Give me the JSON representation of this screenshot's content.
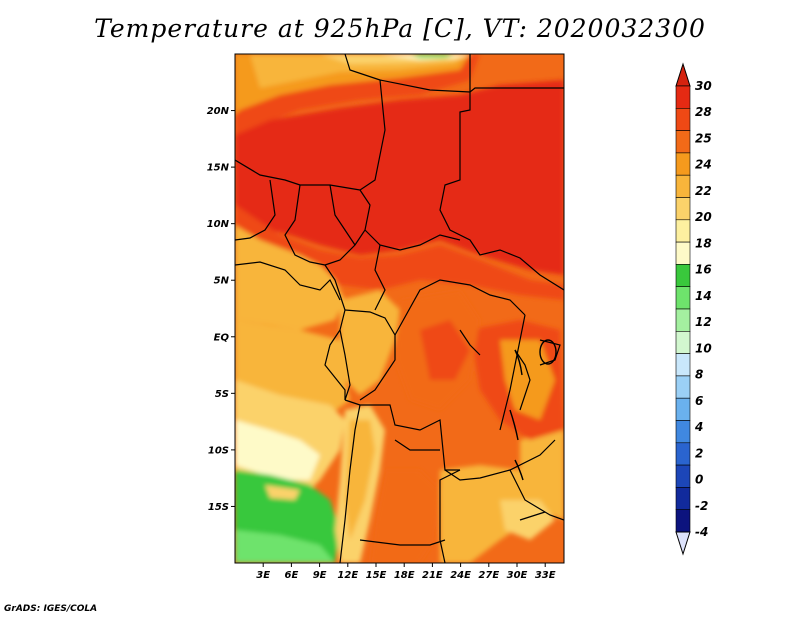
{
  "title": "Temperature at 925hPa [C], VT: 2020032300",
  "credit": "GrADS: IGES/COLA",
  "map": {
    "lon_range": [
      0,
      35
    ],
    "lat_range": [
      -20,
      25
    ],
    "lon_ticks": [
      "3E",
      "6E",
      "9E",
      "12E",
      "15E",
      "18E",
      "21E",
      "24E",
      "27E",
      "30E",
      "33E"
    ],
    "lon_tick_values": [
      3,
      6,
      9,
      12,
      15,
      18,
      21,
      24,
      27,
      30,
      33
    ],
    "lat_ticks": [
      "20N",
      "15N",
      "10N",
      "5N",
      "EQ",
      "5S",
      "10S",
      "15S"
    ],
    "lat_tick_values": [
      20,
      15,
      10,
      5,
      0,
      -5,
      -10,
      -15
    ]
  },
  "colorbar": {
    "labels": [
      "30",
      "28",
      "25",
      "24",
      "22",
      "20",
      "18",
      "16",
      "14",
      "12",
      "10",
      "8",
      "6",
      "4",
      "2",
      "0",
      "-2",
      "-4"
    ],
    "colors_top_to_bottom": [
      "#e52a13",
      "#ef4915",
      "#f26a18",
      "#f59a1d",
      "#f8b53b",
      "#fbd26a",
      "#fdf0a0",
      "#fefac8",
      "#39c83c",
      "#6ee36c",
      "#a4f0a0",
      "#d2f7cf",
      "#c9e7fb",
      "#9bd0f6",
      "#6ab1ee",
      "#4088e0",
      "#2a64cf",
      "#1c46b8",
      "#112a9c",
      "#0c137e"
    ],
    "arrow_top_color": "#d5230f",
    "arrow_bottom_color": "#dde2fb"
  }
}
